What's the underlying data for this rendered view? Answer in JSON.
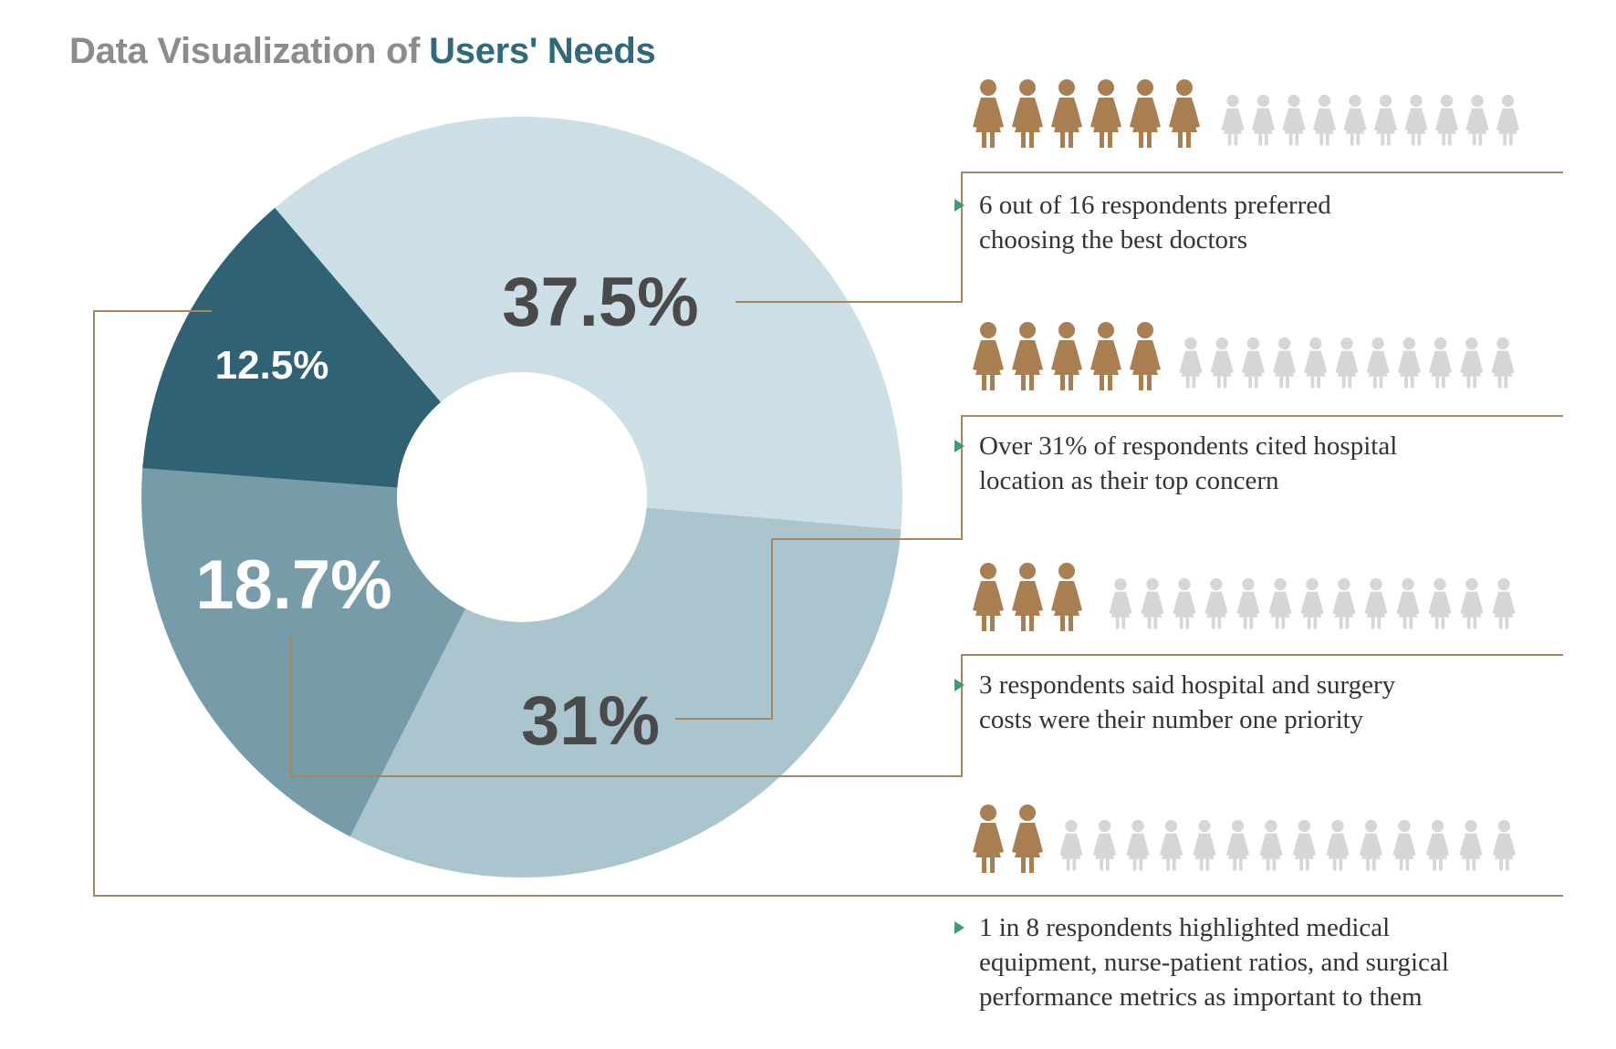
{
  "title": {
    "prefix": "Data Visualization of",
    "highlight": "Users' Needs"
  },
  "colors": {
    "title_gray": "#8c8c8c",
    "title_teal": "#2f6a7c",
    "connector": "#a88760",
    "person_active": "#a97f52",
    "person_inactive": "#d6d6d6",
    "bullet": "#3d9a7a"
  },
  "chart_data": {
    "type": "pie",
    "variant": "donut",
    "slices": [
      {
        "label": "37.5%",
        "value": 37.5,
        "color": "#cddfe6",
        "label_color": "#4a4a4a"
      },
      {
        "label": "31%",
        "value": 31,
        "color": "#abc5ce",
        "label_color": "#4a4a4a"
      },
      {
        "label": "18.7%",
        "value": 18.7,
        "color": "#769ca9",
        "label_color": "#ffffff"
      },
      {
        "label": "12.5%",
        "value": 12.5,
        "color": "#2f6273",
        "label_color": "#ffffff"
      }
    ]
  },
  "pictograms": [
    {
      "active": 6,
      "total": 16
    },
    {
      "active": 5,
      "total": 16
    },
    {
      "active": 3,
      "total": 16
    },
    {
      "active": 2,
      "total": 16
    }
  ],
  "captions": [
    {
      "lines": [
        "6 out of 16 respondents preferred",
        "choosing the best doctors"
      ]
    },
    {
      "lines": [
        "Over 31% of respondents cited hospital",
        "location as their top concern"
      ]
    },
    {
      "lines": [
        "3 respondents said hospital and surgery",
        "costs were their number one priority"
      ]
    },
    {
      "lines": [
        "1 in 8 respondents highlighted medical",
        "equipment, nurse-patient ratios, and surgical",
        "performance metrics as important to them"
      ]
    }
  ]
}
